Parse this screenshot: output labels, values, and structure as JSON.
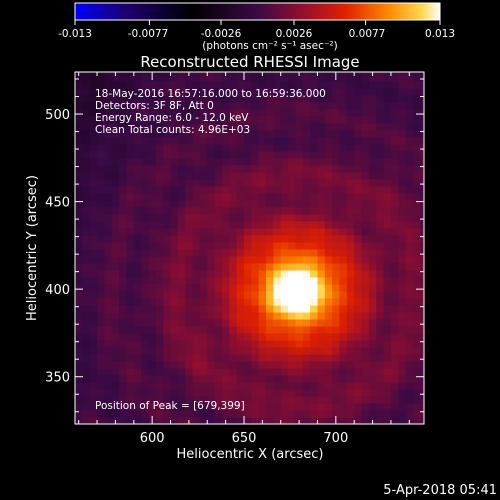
{
  "chart_data": {
    "type": "heatmap",
    "title": "Reconstructed RHESSI Image",
    "xlabel": "Heliocentric X (arcsec)",
    "ylabel": "Heliocentric Y (arcsec)",
    "xlim": [
      558,
      748
    ],
    "ylim": [
      323,
      524
    ],
    "x_ticks": [
      600,
      650,
      700
    ],
    "y_ticks": [
      350,
      400,
      450,
      500
    ],
    "colorbar": {
      "min": -0.013,
      "max": 0.013,
      "tick_values": [
        -0.013,
        -0.0077,
        -0.0026,
        0.0026,
        0.0077,
        0.013
      ],
      "tick_labels": [
        "-0.013",
        "-0.0077",
        "-0.0026",
        "0.0026",
        "0.0077",
        "0.013"
      ],
      "units": "(photons cm⁻² s⁻¹ asec⁻²)",
      "colors": [
        "#0000ff",
        "#1a0060",
        "#000000",
        "#5a0a5a",
        "#b0101a",
        "#ff3000",
        "#ff9a00",
        "#ffe860",
        "#ffffff"
      ]
    },
    "annotations": [
      "18-May-2016 16:57:16.000 to 16:59:36.000",
      "Detectors: 3F 8F, Att 0",
      "Energy Range: 6.0 - 12.0 keV",
      "Clean     Total counts: 4.96E+03"
    ],
    "peak_label": "Position of Peak = [679,399]",
    "peak": {
      "x": 679,
      "y": 399
    }
  },
  "footer": {
    "date": "5-Apr-2018 05:41"
  }
}
